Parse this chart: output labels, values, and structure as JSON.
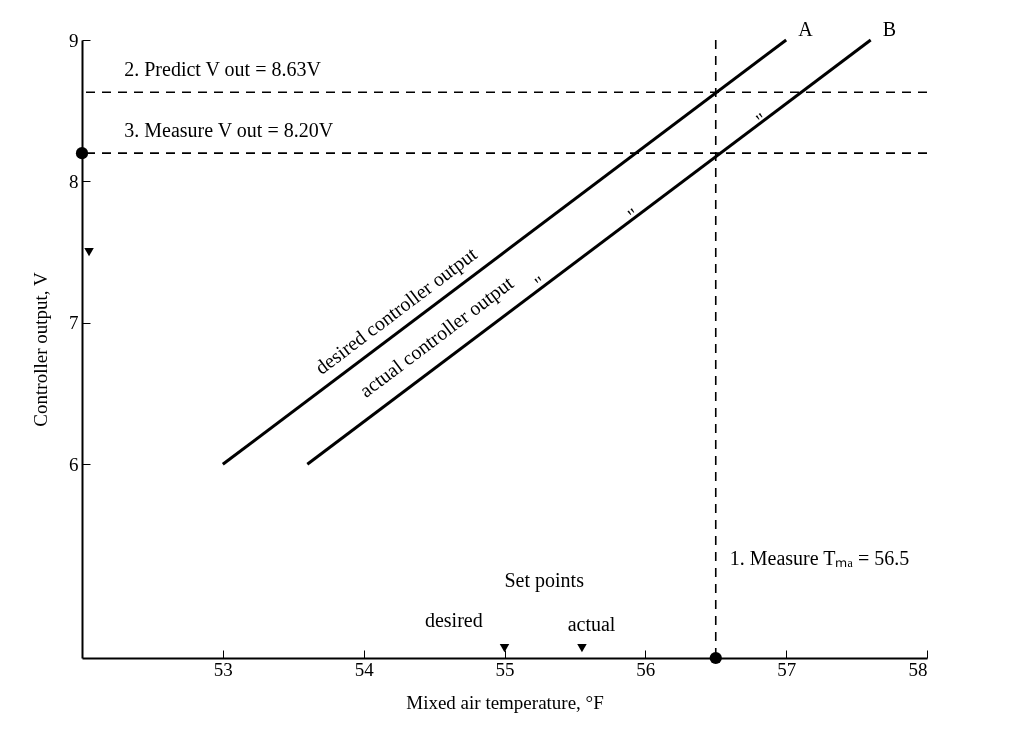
{
  "chart_data": {
    "type": "line",
    "xlabel": "Mixed air temperature, °F",
    "ylabel": "Controller output, V",
    "xlim": [
      52,
      58
    ],
    "xticks": [
      53,
      54,
      55,
      56,
      57,
      58
    ],
    "ylim": [
      4.63,
      9
    ],
    "yticks": [
      6,
      7,
      8,
      9
    ],
    "grid": false,
    "line_style": "solid",
    "series": [
      {
        "name": "A",
        "color": "#000000",
        "x": [
          53,
          57
        ],
        "values": [
          6,
          9
        ]
      },
      {
        "name": "B",
        "color": "#000000",
        "x": [
          53.6,
          57.6
        ],
        "values": [
          6,
          9
        ]
      },
      {
        "type": "scatter",
        "marker": "circle",
        "color": "#000000",
        "x": [
          52,
          56.5
        ],
        "values": [
          8.2,
          4.63
        ]
      },
      {
        "type": "scatter",
        "marker": "triangle",
        "color": "#000000",
        "x": [
          55,
          55.55,
          52.05
        ],
        "values": [
          4.7,
          4.7,
          7.5
        ]
      }
    ],
    "ref_lines": [
      {
        "axis": "x",
        "value": 56.5,
        "label": "1. Measure Tₘₐ = 56.5",
        "line_style": "dashed"
      },
      {
        "axis": "y",
        "value": 8.63,
        "label": "2. Predict V out = 8.63V",
        "line_style": "dashed"
      },
      {
        "axis": "y",
        "value": 8.2,
        "label": "3. Measure V out = 8.20V",
        "line_style": "dashed"
      }
    ],
    "annotations": [
      "desired controller output",
      "actual controller output",
      "\"",
      "\"",
      "\"",
      "Set points",
      "desired",
      "actual"
    ]
  }
}
